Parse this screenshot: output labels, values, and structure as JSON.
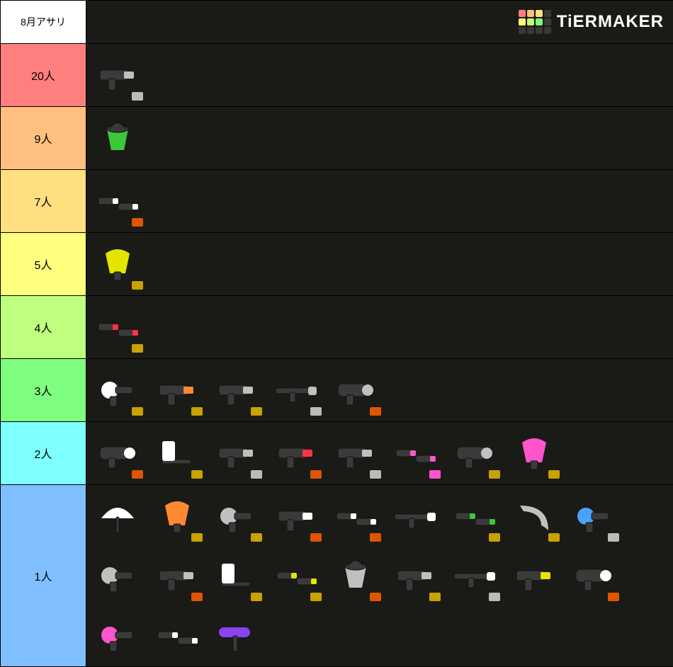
{
  "title": "8月アサリ",
  "brand": "TiERMAKER",
  "logo_colors": [
    "#ff7f7f",
    "#ffbf7f",
    "#ffdf7f",
    "#3a3a33",
    "#ffff7f",
    "#bfff7f",
    "#7fff7f",
    "#3a3a33",
    "#3a3a33",
    "#3a3a33",
    "#3a3a33",
    "#3a3a33"
  ],
  "background": "#1a1a17",
  "tiers": [
    {
      "label": "20人",
      "color": "#ff7f7f",
      "items": [
        {
          "accent": "weapon-a1",
          "shape": "shooter",
          "badge": "#bbbbbb"
        }
      ]
    },
    {
      "label": "9人",
      "color": "#ffbf7f",
      "items": [
        {
          "accent": "weapon-a3",
          "shape": "bucket",
          "badge": null
        }
      ]
    },
    {
      "label": "7人",
      "color": "#ffdf7f",
      "items": [
        {
          "accent": "weapon-a8",
          "shape": "dualies",
          "badge": "#e05500"
        }
      ]
    },
    {
      "label": "5人",
      "color": "#ffff7f",
      "items": [
        {
          "accent": "weapon-a4",
          "shape": "slosher",
          "badge": "#c9a200"
        }
      ]
    },
    {
      "label": "4人",
      "color": "#bfff7f",
      "items": [
        {
          "accent": "weapon-a5",
          "shape": "dualies",
          "badge": "#c9a200"
        }
      ]
    },
    {
      "label": "3人",
      "color": "#7fff7f",
      "items": [
        {
          "accent": "weapon-a8",
          "shape": "blaster",
          "badge": "#c9a200"
        },
        {
          "accent": "weapon-a2",
          "shape": "shooter",
          "badge": "#c9a200"
        },
        {
          "accent": "weapon-a1",
          "shape": "shooter",
          "badge": "#c9a200"
        },
        {
          "accent": "weapon-a1",
          "shape": "charger",
          "badge": "#bbbbbb"
        },
        {
          "accent": "weapon-a1",
          "shape": "splatling",
          "badge": "#e05500"
        }
      ]
    },
    {
      "label": "2人",
      "color": "#7fffff",
      "items": [
        {
          "accent": "weapon-a8",
          "shape": "splatling",
          "badge": "#e05500"
        },
        {
          "accent": "weapon-a8",
          "shape": "brush",
          "badge": "#c9a200"
        },
        {
          "accent": "weapon-a1",
          "shape": "shooter",
          "badge": "#bbbbbb"
        },
        {
          "accent": "weapon-a5",
          "shape": "shooter",
          "badge": "#e05500"
        },
        {
          "accent": "weapon-a1",
          "shape": "shooter",
          "badge": "#bbbbbb"
        },
        {
          "accent": "weapon-a6",
          "shape": "dualies",
          "badge": "#ff55cc"
        },
        {
          "accent": "weapon-a1",
          "shape": "splatling",
          "badge": "#c9a200"
        },
        {
          "accent": "weapon-a6",
          "shape": "slosher",
          "badge": "#c9a200"
        }
      ]
    },
    {
      "label": "1人",
      "color": "#7fbfff",
      "items": [
        {
          "accent": "weapon-a8",
          "shape": "brella",
          "badge": null
        },
        {
          "accent": "weapon-a2",
          "shape": "slosher",
          "badge": "#c9a200"
        },
        {
          "accent": "weapon-a1",
          "shape": "blaster",
          "badge": "#c9a200"
        },
        {
          "accent": "weapon-a8",
          "shape": "shooter",
          "badge": "#e05500"
        },
        {
          "accent": "weapon-a8",
          "shape": "dualies",
          "badge": "#e05500"
        },
        {
          "accent": "weapon-a8",
          "shape": "charger",
          "badge": null
        },
        {
          "accent": "weapon-a3",
          "shape": "dualies",
          "badge": "#c9a200"
        },
        {
          "accent": "weapon-a1",
          "shape": "boomerang",
          "badge": "#c9a200"
        },
        {
          "accent": "weapon-a7",
          "shape": "blaster",
          "badge": "#bbbbbb"
        },
        {
          "accent": "weapon-a1",
          "shape": "blaster",
          "badge": null
        },
        {
          "accent": "weapon-a1",
          "shape": "shooter",
          "badge": "#e05500"
        },
        {
          "accent": "weapon-a8",
          "shape": "brush",
          "badge": "#c9a200"
        },
        {
          "accent": "weapon-a4",
          "shape": "dualies",
          "badge": "#c9a200"
        },
        {
          "accent": "weapon-a1",
          "shape": "bucket",
          "badge": "#e05500"
        },
        {
          "accent": "weapon-a1",
          "shape": "shooter",
          "badge": "#c9a200"
        },
        {
          "accent": "weapon-a8",
          "shape": "charger",
          "badge": "#bbbbbb"
        },
        {
          "accent": "weapon-a4",
          "shape": "shooter",
          "badge": null
        },
        {
          "accent": "weapon-a8",
          "shape": "splatling",
          "badge": "#e05500"
        },
        {
          "accent": "weapon-a6",
          "shape": "blaster",
          "badge": null
        },
        {
          "accent": "weapon-a8",
          "shape": "dualies",
          "badge": null
        },
        {
          "accent": "weapon-a9",
          "shape": "roller",
          "badge": null
        }
      ]
    }
  ]
}
